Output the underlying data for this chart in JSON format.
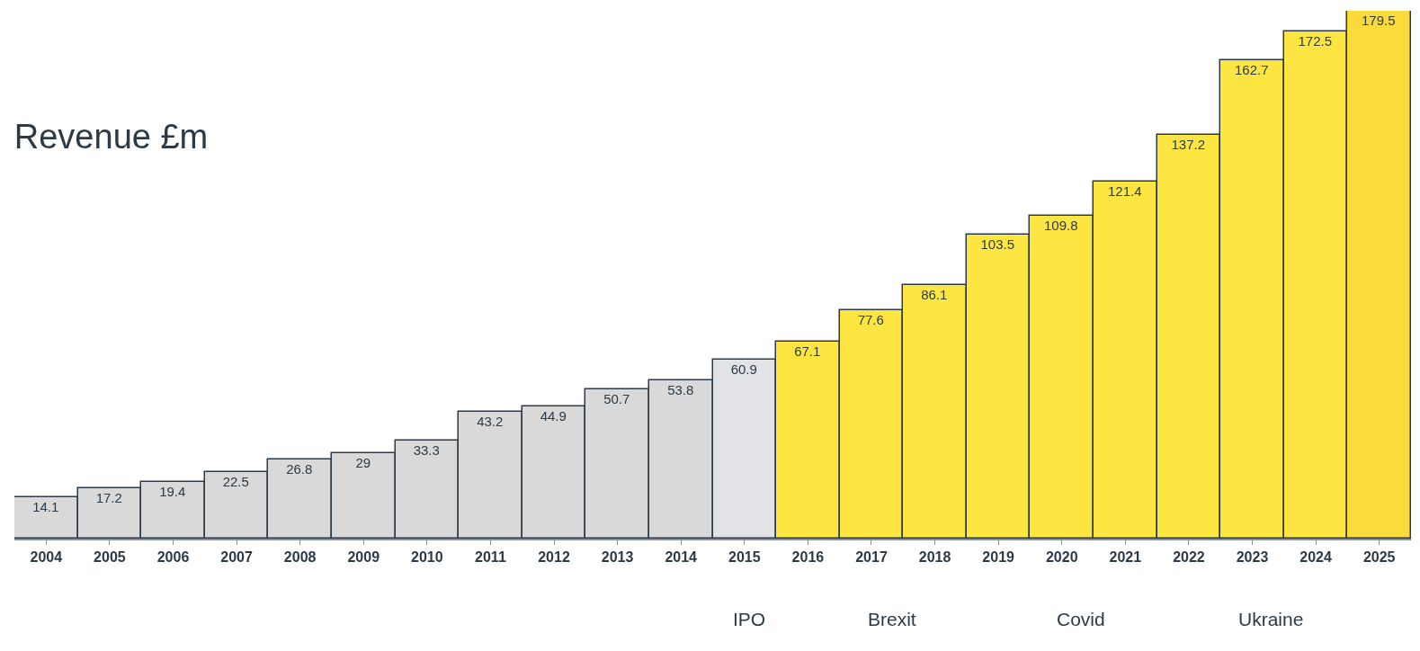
{
  "chart_data": {
    "type": "bar",
    "title": "Revenue £m",
    "categories": [
      "2004",
      "2005",
      "2006",
      "2007",
      "2008",
      "2009",
      "2010",
      "2011",
      "2012",
      "2013",
      "2014",
      "2015",
      "2016",
      "2017",
      "2018",
      "2019",
      "2020",
      "2021",
      "2022",
      "2023",
      "2024",
      "2025"
    ],
    "values": [
      14.1,
      17.2,
      19.4,
      22.5,
      26.8,
      29,
      33.3,
      43.2,
      44.9,
      50.7,
      53.8,
      60.9,
      67.1,
      77.6,
      86.1,
      103.5,
      109.8,
      121.4,
      137.2,
      162.7,
      172.5,
      179.5
    ],
    "colors": [
      "#d9d9d9",
      "#d9d9d9",
      "#d9d9d9",
      "#d9d9d9",
      "#d9d9d9",
      "#d9d9d9",
      "#d9d9d9",
      "#d9d9d9",
      "#d9d9d9",
      "#d9d9d9",
      "#d9d9d9",
      "#e2e3e6",
      "#fde642",
      "#fde642",
      "#fde642",
      "#fde642",
      "#fde642",
      "#fde642",
      "#fde642",
      "#fde642",
      "#fde642",
      "#fbdb3c"
    ],
    "data_labels": true,
    "grid": false,
    "annotations": [
      "IPO",
      "Brexit",
      "Covid",
      "Ukraine"
    ]
  }
}
